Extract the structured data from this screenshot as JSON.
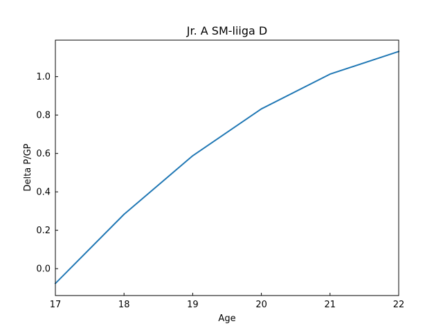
{
  "chart_data": {
    "type": "line",
    "title": "Jr. A SM-liiga D",
    "xlabel": "Age",
    "ylabel": "Delta P/GP",
    "xlim": [
      17,
      22
    ],
    "ylim": [
      -0.14,
      1.19
    ],
    "grid": false,
    "x_ticks": [
      17,
      18,
      19,
      20,
      21,
      22
    ],
    "y_ticks": [
      0.0,
      0.2,
      0.4,
      0.6,
      0.8,
      1.0
    ],
    "y_tick_labels": [
      "0.0",
      "0.2",
      "0.4",
      "0.6",
      "0.8",
      "1.0"
    ],
    "line_color": "#1f77b4",
    "series": [
      {
        "x": [
          17,
          18,
          19,
          20,
          21,
          22
        ],
        "values": [
          -0.077,
          0.283,
          0.588,
          0.832,
          1.013,
          1.131
        ]
      }
    ]
  }
}
